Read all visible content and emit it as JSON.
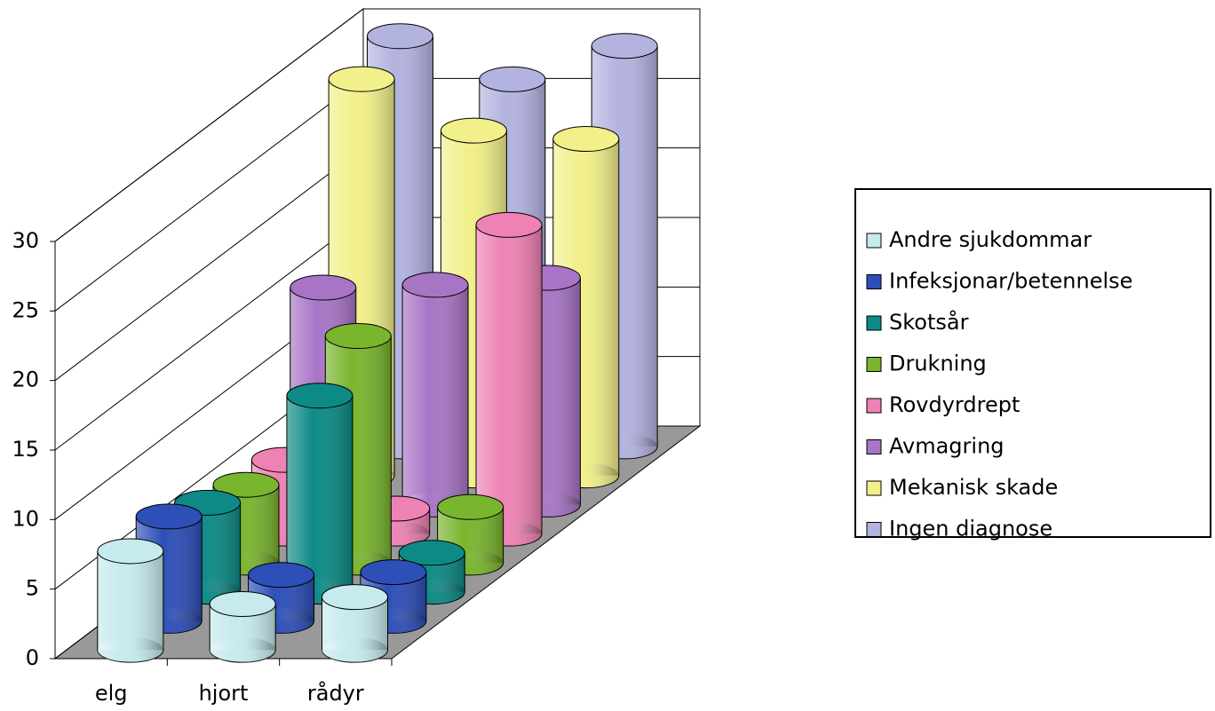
{
  "chart_data": {
    "type": "bar3d",
    "categories": [
      "elg",
      "hjort",
      "rådyr"
    ],
    "series": [
      {
        "name": "Andre sjukdommar",
        "color": "#c6eaee",
        "values": [
          7.1,
          3.3,
          3.8
        ]
      },
      {
        "name": "Infeksjonar/betennelse",
        "color": "#2d4fb8",
        "values": [
          7.5,
          3.3,
          3.5
        ]
      },
      {
        "name": "Skotsår",
        "color": "#0e8a86",
        "values": [
          6.4,
          14.1,
          2.8
        ]
      },
      {
        "name": "Drukning",
        "color": "#7ab52e",
        "values": [
          5.6,
          16.3,
          4.0
        ]
      },
      {
        "name": "Rovdyrdrept",
        "color": "#ee82b4",
        "values": [
          5.3,
          1.8,
          22.2
        ]
      },
      {
        "name": "Avmagring",
        "color": "#a875c6",
        "values": [
          15.6,
          15.8,
          16.3
        ]
      },
      {
        "name": "Mekanisk skade",
        "color": "#f2f08a",
        "values": [
          28.5,
          24.8,
          24.2
        ]
      },
      {
        "name": "Ingen diagnose",
        "color": "#b3b3e0",
        "values": [
          29.5,
          26.4,
          28.8
        ]
      }
    ],
    "ylim": [
      0,
      30
    ],
    "yticks": [
      0,
      5,
      10,
      15,
      20,
      25,
      30
    ],
    "grid": true,
    "legend": "right"
  }
}
